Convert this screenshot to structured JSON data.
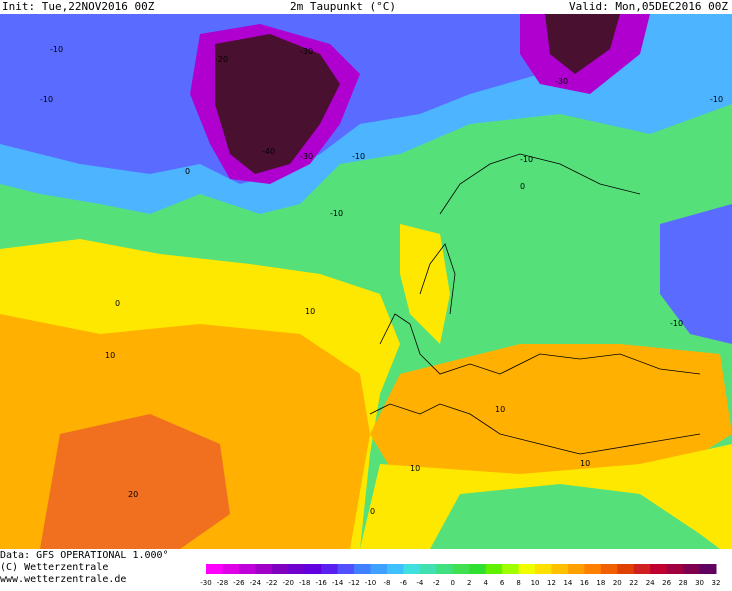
{
  "header": {
    "init": "Init: Tue,22NOV2016 00Z",
    "title": "2m Taupunkt (°C)",
    "valid": "Valid: Mon,05DEC2016 00Z"
  },
  "footer": {
    "data_source": "Data: GFS OPERATIONAL 1.000°",
    "copyright": "(C) Wetterzentrale",
    "website": "www.wetterzentrale.de"
  },
  "colorbar": {
    "ticks": [
      "-30",
      "-28",
      "-26",
      "-24",
      "-22",
      "-20",
      "-18",
      "-16",
      "-14",
      "-12",
      "-10",
      "-8",
      "-6",
      "-4",
      "-2",
      "0",
      "2",
      "4",
      "6",
      "8",
      "10",
      "12",
      "14",
      "16",
      "18",
      "20",
      "22",
      "24",
      "26",
      "28",
      "30",
      "32"
    ],
    "colors": [
      "#ff00ff",
      "#e000e8",
      "#c000d8",
      "#a000c8",
      "#8000c0",
      "#7000d0",
      "#6000e0",
      "#5a20f0",
      "#5050ff",
      "#4080ff",
      "#3fa0ff",
      "#40c0ff",
      "#40e0e0",
      "#40e0b0",
      "#40e080",
      "#40e050",
      "#30e030",
      "#60f000",
      "#a0ff00",
      "#f0ff00",
      "#ffe000",
      "#ffc000",
      "#ffa000",
      "#ff8000",
      "#f06000",
      "#e04000",
      "#d02020",
      "#c00030",
      "#a00040",
      "#800050",
      "#600060"
    ]
  },
  "contour_labels": [
    "-10",
    "-20",
    "-30",
    "-40",
    "0",
    "10",
    "20"
  ],
  "colors": {
    "ocean_green": "#4fe07a",
    "cold_blue": "#50a0ff",
    "deep_cold": "#4a1030",
    "warm_yellow": "#ffe800",
    "warm_orange": "#ffa000",
    "hot_orange": "#f07020"
  }
}
